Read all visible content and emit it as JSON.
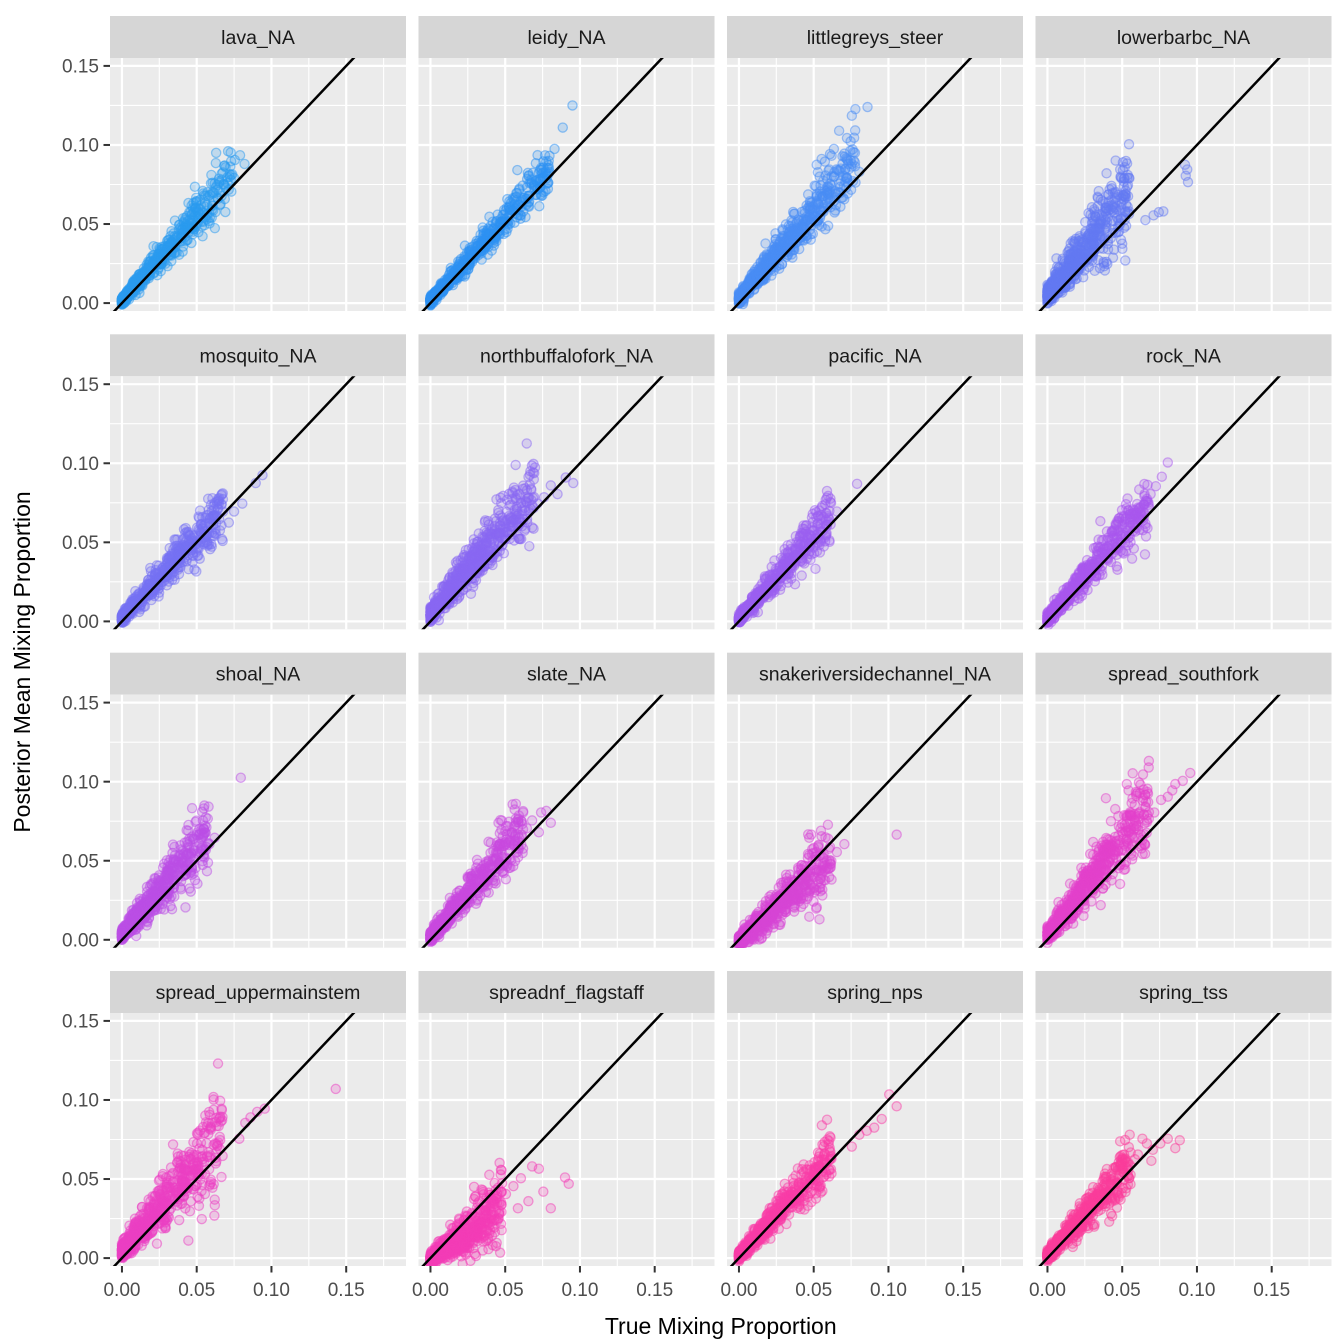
{
  "chart_data": {
    "type": "scatter",
    "title": "",
    "xlabel": "True Mixing Proportion",
    "ylabel": "Posterior Mean Mixing Proportion",
    "x_tick_labels": [
      "0.00",
      "0.05",
      "0.10",
      "0.15"
    ],
    "y_tick_labels": [
      "0.00",
      "0.05",
      "0.10",
      "0.15"
    ],
    "x_tick_values": [
      0,
      0.05,
      0.1,
      0.15
    ],
    "y_tick_values": [
      0,
      0.05,
      0.1,
      0.15
    ],
    "x_minor_values": [
      0.025,
      0.075,
      0.125,
      0.175
    ],
    "y_minor_values": [
      0.025,
      0.075,
      0.125
    ],
    "xlim": [
      -0.008,
      0.19
    ],
    "ylim": [
      -0.005,
      0.155
    ],
    "grid": "on",
    "legend": "none",
    "reference_line": {
      "slope": 1,
      "intercept": 0,
      "color": "#000000"
    },
    "facet_rows": 4,
    "facet_cols": 4,
    "style": {
      "panel_bg": "#EBEBEB",
      "strip_bg": "#D6D6D6",
      "strip_text_color": "#1A1A1A",
      "grid_color": "#FFFFFF",
      "axis_text_color": "#4D4D4D",
      "axis_title_color": "#000000",
      "tick_mark_color": "#333333",
      "point_radius": 4.6,
      "point_fill_opacity": 0.22,
      "point_stroke_opacity": 0.5
    },
    "panels": [
      {
        "label": "lava_NA",
        "color": "#2B9CF0",
        "cloud": {
          "n": 620,
          "xmax": 0.075,
          "pow": 2.1,
          "slope": 1.03,
          "intercept": 0.0008,
          "noise": 0.0035,
          "skew": 0.5
        },
        "outliers": [
          [
            0.063,
            0.095
          ],
          [
            0.071,
            0.096
          ],
          [
            0.0755,
            0.0905
          ],
          [
            0.079,
            0.0935
          ],
          [
            0.082,
            0.088
          ],
          [
            0.072,
            0.0815
          ],
          [
            0.0655,
            0.062
          ],
          [
            0.061,
            0.0585
          ],
          [
            0.058,
            0.052
          ]
        ]
      },
      {
        "label": "leidy_NA",
        "color": "#2E92F3",
        "cloud": {
          "n": 650,
          "xmax": 0.08,
          "pow": 2.2,
          "slope": 1.0,
          "intercept": 0.0012,
          "noise": 0.0035,
          "skew": 0.4
        },
        "outliers": [
          [
            0.095,
            0.125
          ],
          [
            0.0885,
            0.111
          ],
          [
            0.083,
            0.0975
          ],
          [
            0.0775,
            0.0895
          ],
          [
            0.0745,
            0.0845
          ],
          [
            0.0695,
            0.0745
          ],
          [
            0.066,
            0.068
          ]
        ]
      },
      {
        "label": "littlegreys_steer",
        "color": "#4A8DF5",
        "cloud": {
          "n": 700,
          "xmax": 0.078,
          "pow": 2.0,
          "slope": 1.05,
          "intercept": 0.002,
          "noise": 0.004,
          "skew": 0.7
        },
        "outliers": [
          [
            0.086,
            0.124
          ],
          [
            0.067,
            0.109
          ],
          [
            0.0635,
            0.0975
          ],
          [
            0.0575,
            0.0895
          ],
          [
            0.052,
            0.0875
          ],
          [
            0.0605,
            0.0845
          ],
          [
            0.0705,
            0.0945
          ],
          [
            0.0755,
            0.088
          ],
          [
            0.0805,
            0.083
          ]
        ]
      },
      {
        "label": "lowerbarbc_NA",
        "color": "#6379F3",
        "cloud": {
          "n": 720,
          "xmax": 0.055,
          "pow": 2.0,
          "slope": 1.05,
          "intercept": 0.0035,
          "noise": 0.0055,
          "skew": 1.0
        },
        "outliers": [
          [
            0.092,
            0.0875
          ],
          [
            0.0935,
            0.0845
          ],
          [
            0.0925,
            0.0805
          ],
          [
            0.094,
            0.0765
          ],
          [
            0.071,
            0.0555
          ],
          [
            0.0745,
            0.0575
          ],
          [
            0.0775,
            0.058
          ],
          [
            0.0655,
            0.0525
          ]
        ]
      },
      {
        "label": "mosquito_NA",
        "color": "#7671F4",
        "cloud": {
          "n": 620,
          "xmax": 0.068,
          "pow": 2.1,
          "slope": 1.0,
          "intercept": 0.0012,
          "noise": 0.0038,
          "skew": 0.4
        },
        "outliers": [
          [
            0.094,
            0.0925
          ],
          [
            0.0895,
            0.0875
          ],
          [
            0.0805,
            0.0745
          ],
          [
            0.075,
            0.0695
          ],
          [
            0.0715,
            0.0625
          ],
          [
            0.0655,
            0.0575
          ],
          [
            0.0555,
            0.0515
          ],
          [
            0.0505,
            0.0415
          ],
          [
            0.0475,
            0.046
          ]
        ]
      },
      {
        "label": "northbuffalofork_NA",
        "color": "#8A67F3",
        "cloud": {
          "n": 720,
          "xmax": 0.07,
          "pow": 1.9,
          "slope": 1.06,
          "intercept": 0.003,
          "noise": 0.005,
          "skew": 0.8
        },
        "outliers": [
          [
            0.0955,
            0.0875
          ],
          [
            0.0905,
            0.091
          ],
          [
            0.085,
            0.0805
          ],
          [
            0.0805,
            0.086
          ],
          [
            0.076,
            0.0785
          ],
          [
            0.0715,
            0.0745
          ]
        ]
      },
      {
        "label": "pacific_NA",
        "color": "#9B5FF2",
        "cloud": {
          "n": 620,
          "xmax": 0.062,
          "pow": 2.1,
          "slope": 1.02,
          "intercept": 0.001,
          "noise": 0.0035,
          "skew": 0.4
        },
        "outliers": [
          [
            0.079,
            0.087
          ],
          [
            0.0655,
            0.0695
          ],
          [
            0.0605,
            0.0645
          ],
          [
            0.0375,
            0.0235
          ],
          [
            0.042,
            0.029
          ],
          [
            0.0565,
            0.0595
          ]
        ]
      },
      {
        "label": "rock_NA",
        "color": "#A957EF",
        "cloud": {
          "n": 620,
          "xmax": 0.068,
          "pow": 2.1,
          "slope": 1.04,
          "intercept": 0.001,
          "noise": 0.0038,
          "skew": 0.5
        },
        "outliers": [
          [
            0.0805,
            0.1005
          ],
          [
            0.0765,
            0.0915
          ],
          [
            0.0725,
            0.0855
          ],
          [
            0.069,
            0.0805
          ],
          [
            0.0665,
            0.0775
          ],
          [
            0.062,
            0.072
          ],
          [
            0.0585,
            0.0655
          ]
        ]
      },
      {
        "label": "shoal_NA",
        "color": "#BC4FE6",
        "cloud": {
          "n": 650,
          "xmax": 0.058,
          "pow": 2.0,
          "slope": 1.06,
          "intercept": 0.002,
          "noise": 0.0045,
          "skew": 0.6
        },
        "outliers": [
          [
            0.0795,
            0.1025
          ],
          [
            0.062,
            0.0645
          ],
          [
            0.0585,
            0.0605
          ],
          [
            0.046,
            0.0305
          ],
          [
            0.0505,
            0.0355
          ],
          [
            0.0425,
            0.0205
          ],
          [
            0.055,
            0.0575
          ]
        ]
      },
      {
        "label": "slate_NA",
        "color": "#C94ADF",
        "cloud": {
          "n": 650,
          "xmax": 0.062,
          "pow": 2.1,
          "slope": 1.04,
          "intercept": 0.0015,
          "noise": 0.004,
          "skew": 0.5
        },
        "outliers": [
          [
            0.0775,
            0.0815
          ],
          [
            0.074,
            0.0805
          ],
          [
            0.0805,
            0.074
          ],
          [
            0.0725,
            0.068
          ],
          [
            0.068,
            0.0755
          ],
          [
            0.0645,
            0.0705
          ]
        ]
      },
      {
        "label": "snakeriversidechannel_NA",
        "color": "#D745D6",
        "cloud": {
          "n": 680,
          "xmax": 0.062,
          "pow": 2.0,
          "slope": 0.9,
          "intercept": 0.0,
          "noise": 0.0045,
          "skew": -0.5
        },
        "outliers": [
          [
            0.1055,
            0.0665
          ],
          [
            0.0705,
            0.0605
          ],
          [
            0.0655,
            0.0555
          ],
          [
            0.0605,
            0.0505
          ],
          [
            0.0505,
            0.0325
          ],
          [
            0.0465,
            0.0275
          ],
          [
            0.0555,
            0.0455
          ]
        ]
      },
      {
        "label": "spread_southfork",
        "color": "#E341CB",
        "cloud": {
          "n": 700,
          "xmax": 0.068,
          "pow": 1.9,
          "slope": 1.1,
          "intercept": 0.002,
          "noise": 0.005,
          "skew": 0.8
        },
        "outliers": [
          [
            0.0955,
            0.1055
          ],
          [
            0.0905,
            0.1005
          ],
          [
            0.0855,
            0.0985
          ],
          [
            0.0805,
            0.0905
          ],
          [
            0.076,
            0.0885
          ],
          [
            0.0715,
            0.0805
          ],
          [
            0.0835,
            0.0945
          ]
        ]
      },
      {
        "label": "spread_uppermainstem",
        "color": "#EC3FC3",
        "cloud": {
          "n": 680,
          "xmax": 0.068,
          "pow": 1.9,
          "slope": 1.03,
          "intercept": 0.0025,
          "noise": 0.006,
          "skew": 0.6
        },
        "outliers": [
          [
            0.143,
            0.107
          ],
          [
            0.0955,
            0.0945
          ],
          [
            0.0905,
            0.0925
          ],
          [
            0.0825,
            0.0855
          ],
          [
            0.0785,
            0.0755
          ],
          [
            0.0605,
            0.0445
          ],
          [
            0.0555,
            0.0405
          ],
          [
            0.086,
            0.089
          ]
        ]
      },
      {
        "label": "spreadnf_flagstaff",
        "color": "#F43DB7",
        "cloud": {
          "n": 680,
          "xmax": 0.048,
          "pow": 1.9,
          "slope": 0.8,
          "intercept": 0.0,
          "noise": 0.0045,
          "skew": -0.6
        },
        "outliers": [
          [
            0.068,
            0.058
          ],
          [
            0.0725,
            0.0565
          ],
          [
            0.09,
            0.051
          ],
          [
            0.0925,
            0.047
          ],
          [
            0.0755,
            0.042
          ],
          [
            0.0805,
            0.0315
          ],
          [
            0.0585,
            0.0315
          ],
          [
            0.0655,
            0.036
          ],
          [
            0.0555,
            0.0455
          ],
          [
            0.0505,
            0.0405
          ],
          [
            0.0605,
            0.0505
          ]
        ]
      },
      {
        "label": "spring_nps",
        "color": "#F93DA8",
        "cloud": {
          "n": 700,
          "xmax": 0.062,
          "pow": 2.1,
          "slope": 1.0,
          "intercept": 0.001,
          "noise": 0.0035,
          "skew": 0.4
        },
        "outliers": [
          [
            0.1005,
            0.1035
          ],
          [
            0.1055,
            0.096
          ],
          [
            0.0955,
            0.088
          ],
          [
            0.0905,
            0.0825
          ],
          [
            0.0855,
            0.0805
          ],
          [
            0.0805,
            0.078
          ],
          [
            0.0755,
            0.0705
          ]
        ]
      },
      {
        "label": "spring_tss",
        "color": "#FC3D9C",
        "cloud": {
          "n": 700,
          "xmax": 0.056,
          "pow": 2.1,
          "slope": 1.0,
          "intercept": 0.001,
          "noise": 0.0035,
          "skew": 0.45
        },
        "outliers": [
          [
            0.0635,
            0.0755
          ],
          [
            0.0665,
            0.0725
          ],
          [
            0.0705,
            0.0685
          ],
          [
            0.0755,
            0.0725
          ],
          [
            0.0805,
            0.0755
          ],
          [
            0.0855,
            0.0695
          ],
          [
            0.0885,
            0.0745
          ],
          [
            0.0605,
            0.0655
          ],
          [
            0.0585,
            0.0625
          ],
          [
            0.0695,
            0.0615
          ]
        ]
      }
    ]
  }
}
